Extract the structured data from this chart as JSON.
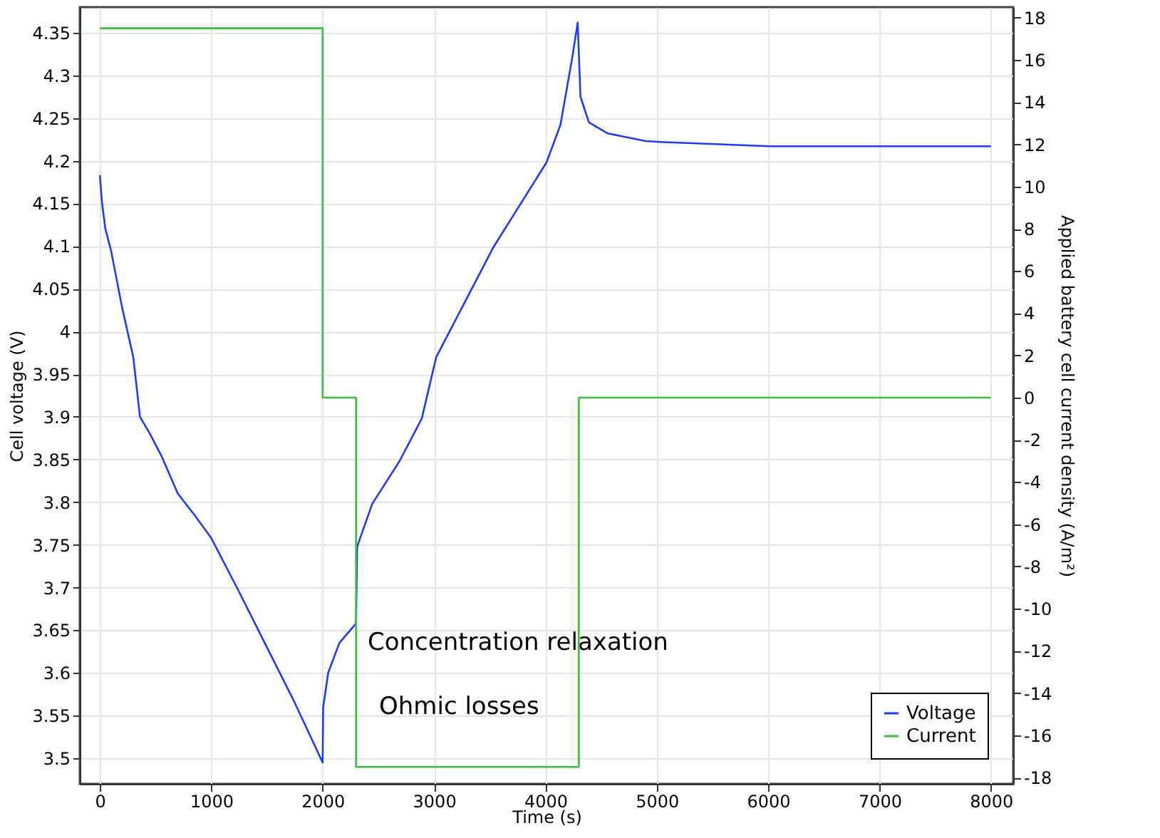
{
  "chart_data": {
    "type": "line",
    "xlabel": "Time (s)",
    "ylabel": "Cell voltage (V)",
    "y2label": "Applied battery cell current density (A/m²)",
    "xlim": [
      -180,
      8200
    ],
    "xticks": [
      0,
      1000,
      2000,
      3000,
      4000,
      5000,
      6000,
      7000,
      8000
    ],
    "ylim": [
      3.47,
      4.38
    ],
    "yticks": [
      3.5,
      3.55,
      3.6,
      3.65,
      3.7,
      3.75,
      3.8,
      3.85,
      3.9,
      3.95,
      4,
      4.05,
      4.1,
      4.15,
      4.2,
      4.25,
      4.3,
      4.35
    ],
    "y2lim": [
      -18.3,
      18.5
    ],
    "y2ticks": [
      -18,
      -16,
      -14,
      -12,
      -10,
      -8,
      -6,
      -4,
      -2,
      0,
      2,
      4,
      6,
      8,
      10,
      12,
      14,
      16,
      18
    ],
    "grid": true,
    "legend": "bottom right",
    "series": [
      {
        "name": "Voltage",
        "color": "#1f3cf5",
        "x": [
          0,
          20,
          50,
          100,
          200,
          300,
          360,
          450,
          550,
          700,
          850,
          1000,
          1250,
          1500,
          1750,
          2000,
          2005,
          2050,
          2150,
          2300,
          2310,
          2445,
          2690,
          2890,
          3020,
          3530,
          4010,
          4135,
          4240,
          4290,
          4315,
          4390,
          4560,
          4900,
          5030,
          6020,
          8000
        ],
        "values": [
          4.183,
          4.15,
          4.12,
          4.095,
          4.028,
          3.97,
          3.9,
          3.88,
          3.855,
          3.81,
          3.785,
          3.758,
          3.695,
          3.63,
          3.565,
          3.495,
          3.56,
          3.6,
          3.635,
          3.658,
          3.748,
          3.798,
          3.848,
          3.898,
          3.97,
          4.098,
          4.198,
          4.242,
          4.32,
          4.362,
          4.275,
          4.245,
          4.232,
          4.223,
          4.222,
          4.217,
          4.217
        ]
      },
      {
        "name": "Current",
        "color": "#3cbf3c",
        "axis": "y2",
        "x": [
          0,
          2000,
          2000,
          2300,
          2300,
          4300,
          4300,
          8000
        ],
        "values": [
          17.5,
          17.5,
          0,
          0,
          -17.5,
          -17.5,
          0,
          0
        ]
      }
    ],
    "annotations": [
      "Concentration relaxation",
      "Ohmic losses"
    ]
  }
}
